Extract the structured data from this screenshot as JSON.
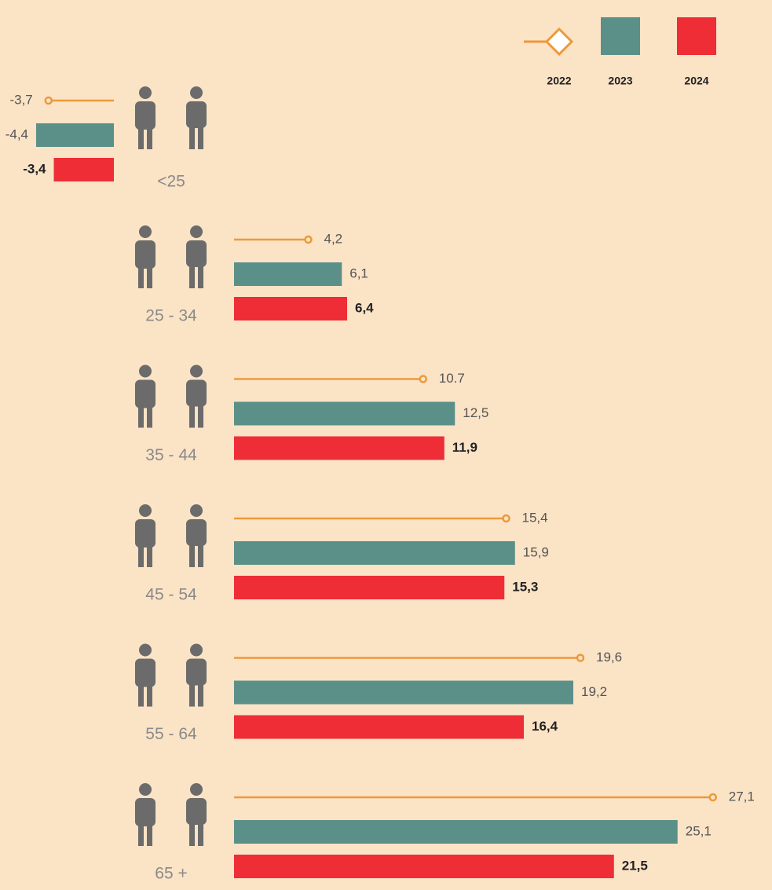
{
  "chart_data": {
    "type": "bar",
    "categories": [
      "<25",
      "25 - 34",
      "35 - 44",
      "45 - 54",
      "55 - 64",
      "65 +"
    ],
    "series": [
      {
        "name": "2022",
        "color": "#eb9a3c",
        "values": [
          -3.7,
          4.2,
          10.7,
          15.4,
          19.6,
          27.1
        ],
        "value_labels": [
          "-3,7",
          "4,2",
          "10.7",
          "15,4",
          "19,6",
          "27,1"
        ]
      },
      {
        "name": "2023",
        "color": "#5b9089",
        "values": [
          -4.4,
          6.1,
          12.5,
          15.9,
          19.2,
          25.1
        ],
        "value_labels": [
          "-4,4",
          "6,1",
          "12,5",
          "15,9",
          "19,2",
          "25,1"
        ]
      },
      {
        "name": "2024",
        "color": "#ee2d36",
        "values": [
          -3.4,
          6.4,
          11.9,
          15.3,
          16.4,
          21.5
        ],
        "value_labels": [
          "-3,4",
          "6,4",
          "11,9",
          "15,3",
          "16,4",
          "21,5"
        ]
      }
    ]
  }
}
